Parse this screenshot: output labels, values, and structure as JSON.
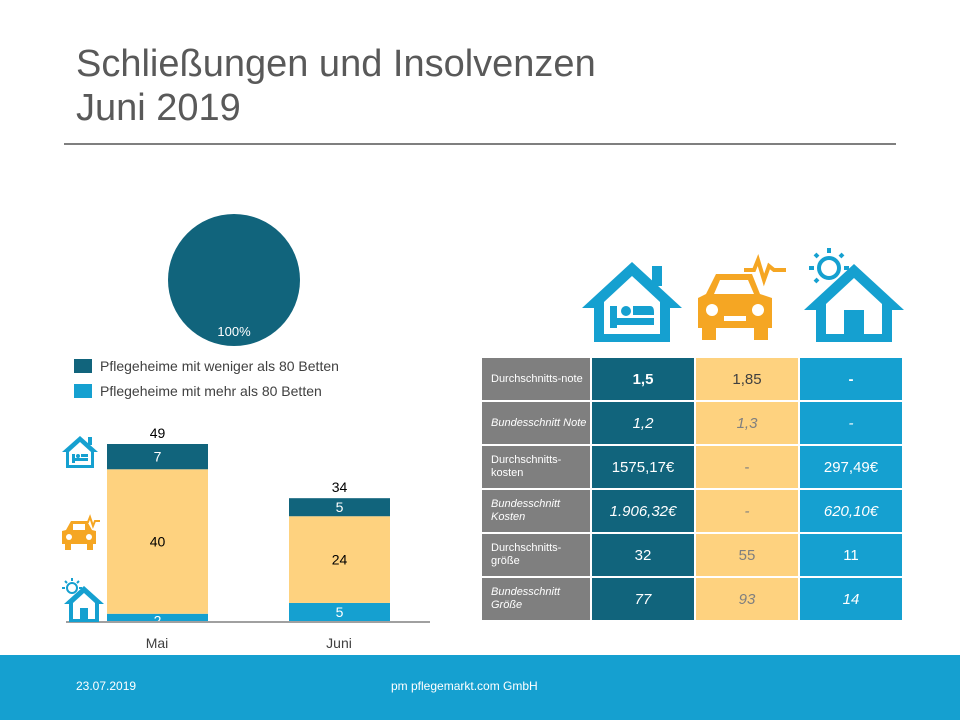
{
  "title": {
    "line1": "Schließungen und Insolvenzen",
    "line2": "Juni 2019"
  },
  "colors": {
    "dark_teal": "#11647c",
    "light_blue": "#15a0d0",
    "yellow": "#fed27f",
    "orange": "#f5a623",
    "grey": "#7f7f7f"
  },
  "icons": {
    "care_home": "house-bed-icon",
    "ambulance": "car-heartbeat-icon",
    "assisted_living": "house-sun-icon"
  },
  "pie": {
    "label": "100%"
  },
  "chart_data": [
    {
      "type": "pie",
      "slices": [
        {
          "name": "Pflegeheime mit weniger als 80 Betten",
          "value": 100,
          "color": "#11647c"
        },
        {
          "name": "Pflegeheime mit mehr als 80 Betten",
          "value": 0,
          "color": "#15a0d0"
        }
      ],
      "label": "100%"
    },
    {
      "type": "bar",
      "stacked": true,
      "categories": [
        "Mai",
        "Juni"
      ],
      "series": [
        {
          "name": "Betreutes Wohnen",
          "values": [
            2,
            5
          ],
          "color": "#15a0d0"
        },
        {
          "name": "Ambulante Pflege",
          "values": [
            40,
            24
          ],
          "color": "#fed27f"
        },
        {
          "name": "Pflegeheime",
          "values": [
            7,
            5
          ],
          "color": "#11647c"
        }
      ],
      "totals": [
        49,
        34
      ],
      "ylim": [
        0,
        49
      ]
    }
  ],
  "legend": [
    {
      "label": "Pflegeheime mit weniger als 80 Betten",
      "color": "#11647c"
    },
    {
      "label": "Pflegeheime mit mehr als 80 Betten",
      "color": "#15a0d0"
    }
  ],
  "table": {
    "rows": [
      {
        "label": "Durchschnitts-note",
        "c1": "1,5",
        "c2": "1,85",
        "c3": "-"
      },
      {
        "label": "Bundesschnitt Note",
        "c1": "1,2",
        "c2": "1,3",
        "c3": "-"
      },
      {
        "label": "Durchschnitts-kosten",
        "c1": "1575,17€",
        "c2": "-",
        "c3": "297,49€"
      },
      {
        "label": "Bundesschnitt Kosten",
        "c1": "1.906,32€",
        "c2": "-",
        "c3": "620,10€"
      },
      {
        "label": "Durchschnitts-größe",
        "c1": "32",
        "c2": "55",
        "c3": "11"
      },
      {
        "label": "Bundesschnitt Größe",
        "c1": "77",
        "c2": "93",
        "c3": "14"
      }
    ]
  },
  "footer": {
    "date": "23.07.2019",
    "company": "pm pflegemarkt.com GmbH"
  }
}
